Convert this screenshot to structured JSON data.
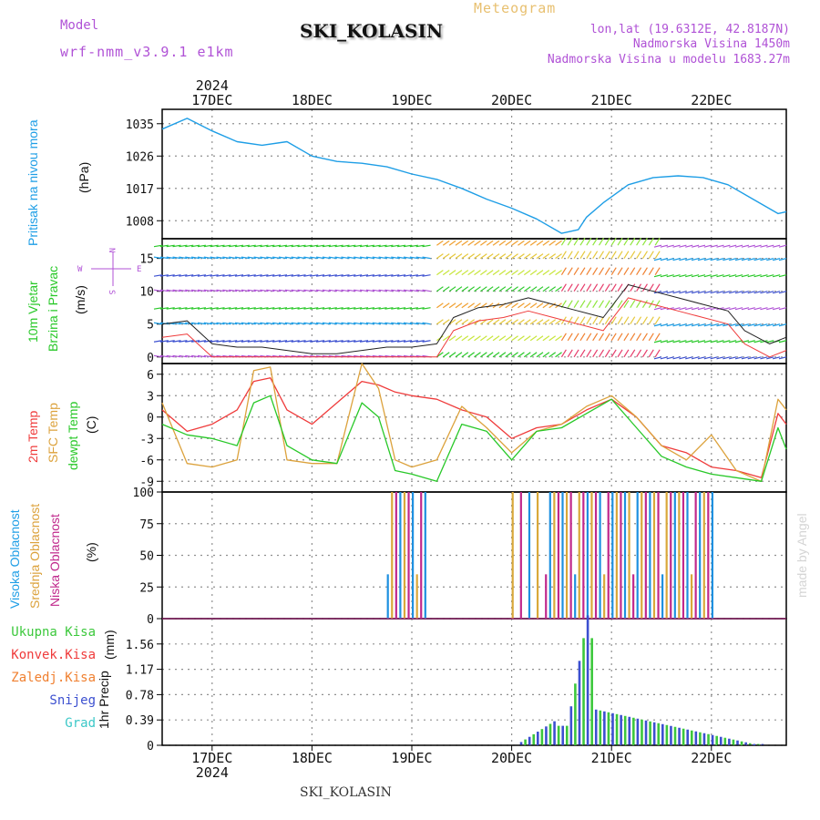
{
  "header": {
    "model_label": "Model",
    "model_name": "wrf-nmm_v3.9.1 e1km",
    "station": "SKI_KOLASIN",
    "meteogram": "Meteogram",
    "lonlat": "lon,lat (19.6312E, 42.8187N)",
    "altitude": "Nadmorska Visina 1450m",
    "model_altitude": "Nadmorska Visina u modelu 1683.27m",
    "year": "2024",
    "footer_station": "SKI_KOLASIN",
    "watermark": "made by Angel"
  },
  "panel_labels": {
    "pressure": {
      "title": "Pritisak na nivou mora",
      "unit": "(hPa)"
    },
    "wind": {
      "title1": "10m Vjetar",
      "title2": "Brzina i Pravac",
      "unit": "(m/s)",
      "compass_n": "N",
      "compass_s": "S",
      "compass_w": "W",
      "compass_e": "E"
    },
    "temp": {
      "t2m": "2m Temp",
      "sfc": "SFC Temp",
      "dew": "dewpt Temp",
      "unit": "(C)"
    },
    "cloud": {
      "high": "Visoka Oblacnost",
      "mid": "Srednja Oblacnost",
      "low": "Niska Oblacnost",
      "unit": "(%)"
    },
    "precip": {
      "title": "1hr Precip",
      "unit": "(mm)"
    }
  },
  "legend_precip": [
    "Ukupna Kisa",
    "Konvek.Kisa",
    "Zaledj.Kisa",
    "Snijeg",
    "Grad"
  ],
  "colors": {
    "violet": "#b052d6",
    "pressure": "#1e9ee6",
    "t2m": "#ef3b3b",
    "sfc": "#dca23c",
    "dew": "#28c828",
    "high_cloud": "#1e90e0",
    "mid_cloud": "#d9a83a",
    "low_cloud": "#c0288c",
    "rain": "#3cc83c",
    "conv": "#ef3b3b",
    "frz": "#f08030",
    "snow": "#3c50d0",
    "hail": "#3cc8c8",
    "grid": "#909090"
  },
  "chart_data": [
    {
      "type": "line",
      "name": "pressure",
      "ylim": [
        1003,
        1039
      ],
      "yticks": [
        1008,
        1017,
        1026,
        1035
      ],
      "x_hours": [
        0,
        6,
        12,
        18,
        24,
        30,
        36,
        42,
        48,
        54,
        60,
        66,
        72,
        78,
        84,
        90,
        96,
        100,
        102,
        106,
        112,
        118,
        124,
        130,
        136,
        142,
        148,
        150
      ],
      "values": [
        1033.5,
        1036.5,
        1033,
        1030,
        1029,
        1030,
        1026,
        1024.5,
        1024,
        1023,
        1021,
        1019.5,
        1017,
        1014,
        1011.5,
        1008.5,
        1004.5,
        1005.5,
        1009,
        1013,
        1018,
        1020,
        1020.5,
        1020,
        1018,
        1014,
        1010,
        1010.5
      ]
    },
    {
      "type": "line",
      "name": "wind",
      "ylim": [
        -1,
        18
      ],
      "yticks": [
        0,
        5,
        10,
        15
      ],
      "x_hours": [
        0,
        6,
        12,
        18,
        24,
        30,
        36,
        42,
        48,
        54,
        60,
        66,
        70,
        76,
        82,
        88,
        94,
        100,
        106,
        112,
        118,
        124,
        130,
        136,
        140,
        146,
        150
      ],
      "values": [
        5,
        5.5,
        2,
        1.5,
        1.5,
        1,
        0.5,
        0.5,
        1,
        1.5,
        1.5,
        2,
        6,
        7.5,
        8,
        9,
        8,
        7,
        6,
        11,
        10,
        9,
        8,
        7,
        4,
        2,
        3
      ]
    },
    {
      "type": "line",
      "name": "temperature",
      "ylim": [
        -10.5,
        7.5
      ],
      "yticks": [
        -9,
        -6,
        -3,
        0,
        3,
        6
      ],
      "x_hours": [
        0,
        6,
        12,
        18,
        22,
        26,
        30,
        36,
        42,
        48,
        52,
        56,
        60,
        66,
        72,
        78,
        84,
        90,
        96,
        102,
        108,
        114,
        120,
        126,
        132,
        138,
        144,
        148,
        150
      ],
      "series": [
        {
          "name": "2m Temp",
          "values": [
            1,
            -2,
            -1,
            1,
            5,
            5.5,
            1,
            -1,
            2,
            5,
            4.5,
            3.5,
            3,
            2.5,
            1,
            0,
            -3,
            -1.5,
            -1,
            1,
            2.5,
            0,
            -4,
            -5,
            -7,
            -7.5,
            -8.5,
            0.5,
            -1
          ]
        },
        {
          "name": "SFC Temp",
          "values": [
            2,
            -6.5,
            -7,
            -6,
            6.5,
            7,
            -6,
            -6.5,
            -6.5,
            7.5,
            4,
            -6,
            -7,
            -6,
            1.5,
            -1.5,
            -5,
            -2,
            -1,
            1.5,
            3,
            0,
            -4,
            -6,
            -2.5,
            -7.5,
            -9,
            2.5,
            1
          ]
        },
        {
          "name": "dewpt Temp",
          "values": [
            -1,
            -2.5,
            -3,
            -4,
            2,
            3,
            -4,
            -6,
            -6.5,
            2,
            0,
            -7.5,
            -8,
            -9,
            -1,
            -2,
            -6,
            -2,
            -1.5,
            0.5,
            2.5,
            -1.5,
            -5.5,
            -7,
            -8,
            -8.5,
            -9,
            -1.5,
            -4.5
          ]
        }
      ]
    },
    {
      "type": "bar",
      "name": "cloud",
      "ylim": [
        0,
        100
      ],
      "yticks": [
        0,
        25,
        50,
        75,
        100
      ]
    },
    {
      "type": "bar",
      "name": "precipitation",
      "ylim": [
        0,
        1.95
      ],
      "yticks": [
        0,
        0.39,
        0.78,
        1.17,
        1.56
      ]
    }
  ],
  "x_axis": {
    "date_labels": [
      "17DEC",
      "18DEC",
      "19DEC",
      "20DEC",
      "21DEC",
      "22DEC"
    ],
    "day_hours": [
      12,
      36,
      60,
      84,
      108,
      132
    ],
    "total_hours": 150
  }
}
